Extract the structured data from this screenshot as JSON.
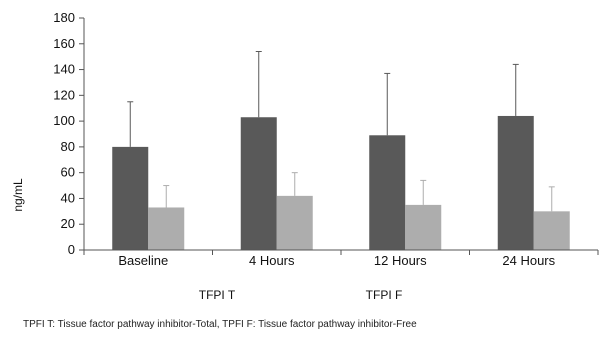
{
  "chart_data": {
    "type": "bar",
    "ylabel": "ng/mL",
    "xlabel": "",
    "categories": [
      "Baseline",
      "4 Hours",
      "12 Hours",
      "24 Hours"
    ],
    "ylim": [
      0,
      180
    ],
    "yticks": [
      0,
      20,
      40,
      60,
      80,
      100,
      120,
      140,
      160,
      180
    ],
    "series": [
      {
        "name": "TFPI T",
        "color": "#595959",
        "values": [
          80,
          103,
          89,
          104
        ],
        "error": [
          35,
          51,
          48,
          40
        ]
      },
      {
        "name": "TFPI F",
        "color": "#adadad",
        "values": [
          33,
          42,
          35,
          30
        ],
        "error": [
          17,
          18,
          19,
          19
        ]
      }
    ],
    "legend_position": "bottom",
    "grid": false
  },
  "footnote": "TPFI T: Tissue factor pathway inhibitor-Total, TPFI F: Tissue factor pathway inhibitor-Free"
}
